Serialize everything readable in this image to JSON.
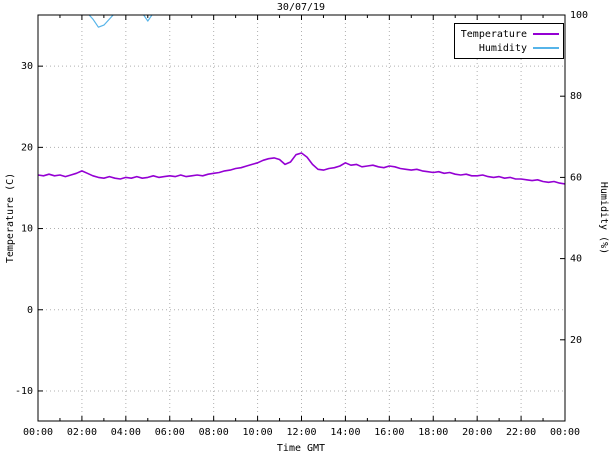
{
  "chart_data": {
    "type": "line",
    "title": "30/07/19",
    "xlabel": "Time GMT",
    "ylabel_left": "Temperature (C)",
    "ylabel_right": "Humidity (%)",
    "x_range": [
      0,
      24
    ],
    "x_tick_interval_hours": 2,
    "x_tick_labels": [
      "00:00",
      "02:00",
      "04:00",
      "06:00",
      "08:00",
      "10:00",
      "12:00",
      "14:00",
      "16:00",
      "18:00",
      "20:00",
      "22:00",
      "00:00"
    ],
    "left_axis": {
      "ticks": [
        -10,
        0,
        10,
        20,
        30
      ],
      "range": [
        -13.7,
        36.3
      ]
    },
    "right_axis": {
      "ticks": [
        20,
        40,
        60,
        80,
        100
      ],
      "range": [
        0,
        100
      ]
    },
    "grid": true,
    "legend_position": "top-right",
    "colors": {
      "grid": "#b0b0b0",
      "border": "#000000"
    },
    "series": [
      {
        "name": "Temperature",
        "axis": "left",
        "color": "#9400d3",
        "width": 1.6,
        "x_step_hours": 0.25,
        "values": [
          16.6,
          16.5,
          16.7,
          16.5,
          16.6,
          16.4,
          16.6,
          16.8,
          17.1,
          16.8,
          16.5,
          16.3,
          16.2,
          16.4,
          16.2,
          16.1,
          16.3,
          16.2,
          16.4,
          16.2,
          16.3,
          16.5,
          16.3,
          16.4,
          16.5,
          16.4,
          16.6,
          16.4,
          16.5,
          16.6,
          16.5,
          16.7,
          16.8,
          16.9,
          17.1,
          17.2,
          17.4,
          17.5,
          17.7,
          17.9,
          18.1,
          18.4,
          18.6,
          18.7,
          18.5,
          17.9,
          18.2,
          19.1,
          19.3,
          18.8,
          17.9,
          17.3,
          17.2,
          17.4,
          17.5,
          17.7,
          18.1,
          17.8,
          17.9,
          17.6,
          17.7,
          17.8,
          17.6,
          17.5,
          17.7,
          17.6,
          17.4,
          17.3,
          17.2,
          17.3,
          17.1,
          17.0,
          16.9,
          17.0,
          16.8,
          16.9,
          16.7,
          16.6,
          16.7,
          16.5,
          16.5,
          16.6,
          16.4,
          16.3,
          16.4,
          16.2,
          16.3,
          16.1,
          16.1,
          16.0,
          15.9,
          16.0,
          15.8,
          15.7,
          15.8,
          15.6,
          15.5
        ]
      },
      {
        "name": "Humidity",
        "axis": "right",
        "color": "#56b4e9",
        "width": 1.2,
        "x_step_hours": 0.25,
        "values": [
          100.5,
          100.5,
          100.5,
          100.5,
          100.5,
          100.5,
          100.5,
          100.5,
          100.5,
          100.5,
          99,
          97,
          97.5,
          99,
          100.5,
          100.5,
          100.5,
          100.5,
          100.5,
          100.5,
          98.5,
          100.5,
          100.5,
          100.5,
          100.5,
          100.5,
          100.5,
          100.5,
          100.5,
          100.5,
          100.5,
          100.5,
          100.5,
          100.5,
          100.5,
          100.5,
          100.5,
          100.5,
          100.5,
          100.5,
          100.5,
          100.5,
          100.5,
          100.5,
          100.5,
          100.5,
          100.5,
          100.5,
          100.5,
          100.5,
          100.5,
          100.5,
          100.5,
          100.5,
          100.5,
          100.5,
          100.5,
          100.5,
          100.5,
          100.5,
          100.5,
          100.5,
          100.5,
          100.5,
          100.5,
          100.5,
          100.5,
          100.5,
          100.5,
          100.5,
          100.5,
          100.5,
          100.5,
          100.5,
          100.5,
          100.5,
          100.5,
          100.5,
          100.5,
          100.5,
          100.5,
          100.5,
          100.5,
          100.5,
          100.5,
          100.5,
          100.5,
          100.5,
          100.5,
          100.5,
          100.5,
          100.5,
          100.5,
          100.5,
          100.5,
          100.5,
          100.5
        ]
      }
    ]
  }
}
